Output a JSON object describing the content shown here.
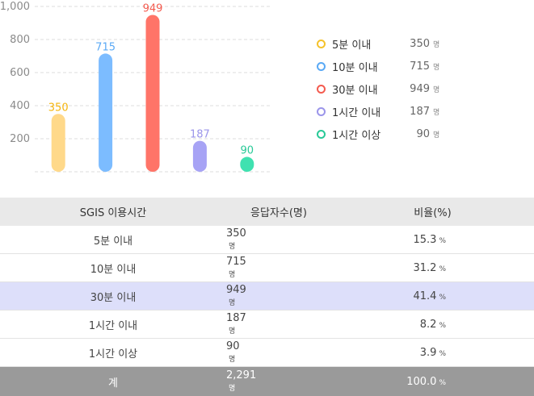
{
  "chart_data": {
    "type": "bar",
    "categories": [
      "5분 이내",
      "10분 이내",
      "30분 이내",
      "1시간 이내",
      "1시간 이상"
    ],
    "values": [
      350,
      715,
      949,
      187,
      90
    ],
    "colors": [
      "#ffd98a",
      "#7cbcff",
      "#ff7468",
      "#a7a3f5",
      "#3fe1b0"
    ],
    "label_colors": [
      "#f5b50d",
      "#5aa9f5",
      "#f45b4f",
      "#9b95ea",
      "#28c997"
    ],
    "ylim": [
      0,
      1000
    ],
    "yticks": [
      "200",
      "400",
      "600",
      "800",
      "1,000"
    ],
    "unit": "명",
    "grid": true,
    "legend_position": "right"
  },
  "table": {
    "headers": [
      "SGIS 이용시간",
      "응답자수(명)",
      "비율(%)"
    ],
    "rows": [
      {
        "label": "5분 이내",
        "count": "350",
        "unit": "명",
        "pct": "15.3",
        "pct_unit": "%"
      },
      {
        "label": "10분 이내",
        "count": "715",
        "unit": "명",
        "pct": "31.2",
        "pct_unit": "%"
      },
      {
        "label": "30분 이내",
        "count": "949",
        "unit": "명",
        "pct": "41.4",
        "pct_unit": "%"
      },
      {
        "label": "1시간 이내",
        "count": "187",
        "unit": "명",
        "pct": "8.2",
        "pct_unit": "%"
      },
      {
        "label": "1시간 이상",
        "count": "90",
        "unit": "명",
        "pct": "3.9",
        "pct_unit": "%"
      }
    ],
    "total": {
      "label": "계",
      "count": "2,291",
      "unit": "명",
      "pct": "100.0",
      "pct_unit": "%"
    }
  }
}
